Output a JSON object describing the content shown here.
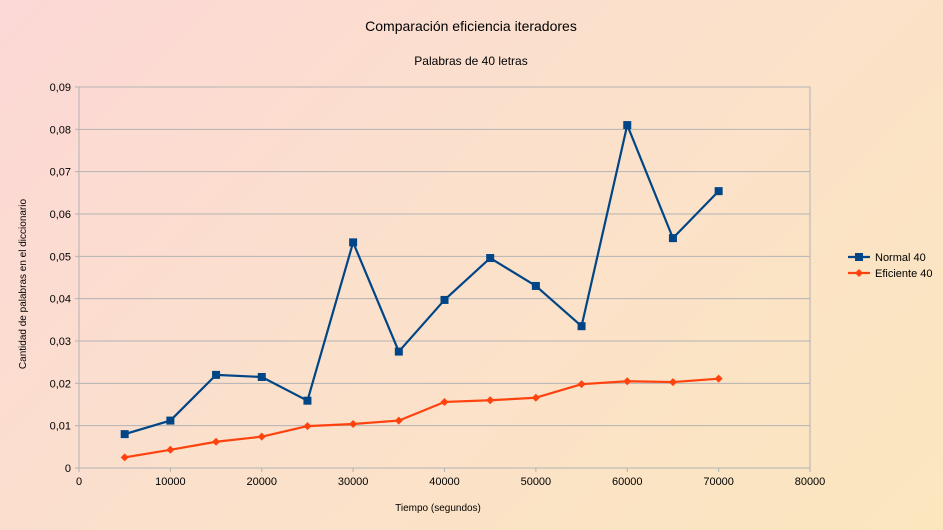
{
  "chart_data": {
    "type": "line",
    "title": "Comparación eficiencia iteradores",
    "subtitle": "Palabras de 40 letras",
    "xlabel": "Tiempo (segundos)",
    "ylabel": "Cantidad de palabras en el diccionario",
    "xlim": [
      0,
      80000
    ],
    "ylim": [
      0,
      0.09
    ],
    "x_ticks": [
      "0",
      "10000",
      "20000",
      "30000",
      "40000",
      "50000",
      "60000",
      "70000",
      "80000"
    ],
    "y_ticks": [
      "0",
      "0,01",
      "0,02",
      "0,03",
      "0,04",
      "0,05",
      "0,06",
      "0,07",
      "0,08",
      "0,09"
    ],
    "grid": true,
    "legend_position": "right",
    "x": [
      5000,
      10000,
      15000,
      20000,
      25000,
      30000,
      35000,
      40000,
      45000,
      50000,
      55000,
      60000,
      65000,
      70000
    ],
    "series": [
      {
        "name": "Normal 40",
        "color": "#004586",
        "marker": "square",
        "values": [
          0.008,
          0.0112,
          0.022,
          0.0215,
          0.0159,
          0.0533,
          0.0275,
          0.0397,
          0.0496,
          0.043,
          0.0335,
          0.081,
          0.0543,
          0.0654
        ]
      },
      {
        "name": "Eficiente 40",
        "color": "#ff420e",
        "marker": "diamond",
        "values": [
          0.0025,
          0.0043,
          0.0062,
          0.0074,
          0.0099,
          0.0104,
          0.0112,
          0.0156,
          0.016,
          0.0166,
          0.0198,
          0.0205,
          0.0203,
          0.0211
        ]
      }
    ]
  }
}
